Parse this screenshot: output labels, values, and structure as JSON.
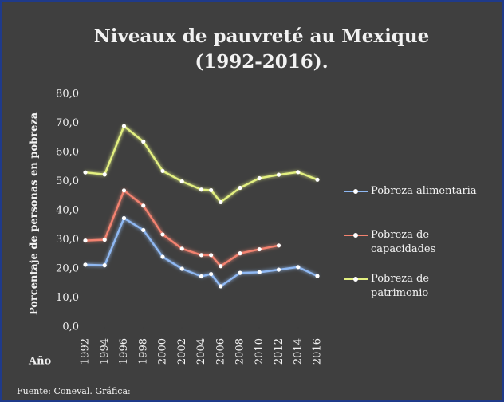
{
  "chart_data": {
    "type": "line",
    "title": [
      "Niveaux de pauvreté au Mexique",
      "(1992-2016)."
    ],
    "y_label": "Porcentaje de personas en pobreza",
    "x_label": "Año",
    "source": "Fuente: Coneval. Gráfica:",
    "x": [
      1992,
      1994,
      1996,
      1998,
      2000,
      2002,
      2004,
      2005,
      2006,
      2008,
      2010,
      2012,
      2014,
      2016
    ],
    "series": [
      {
        "name": "Pobreza alimentaria",
        "color": "#8fb8f2",
        "values": [
          21.4,
          21.2,
          37.4,
          33.3,
          24.1,
          20.0,
          17.4,
          18.2,
          14.0,
          18.6,
          18.8,
          19.7,
          20.6,
          17.5
        ]
      },
      {
        "name": "Pobreza de capacidades",
        "color": "#f2826f",
        "values": [
          29.7,
          30.0,
          46.9,
          41.7,
          31.8,
          26.9,
          24.7,
          24.7,
          20.9,
          25.3,
          26.7,
          28.0,
          null,
          null
        ]
      },
      {
        "name": "Pobreza de patrimonio",
        "color": "#e2ef80",
        "values": [
          53.1,
          52.4,
          69.0,
          63.7,
          53.6,
          50.0,
          47.2,
          47.0,
          42.9,
          47.8,
          51.1,
          52.3,
          53.2,
          50.6
        ]
      }
    ],
    "xlim": [
      1992,
      2016
    ],
    "xticks": [
      1992,
      1994,
      1996,
      1998,
      2000,
      2002,
      2004,
      2006,
      2008,
      2010,
      2012,
      2014,
      2016
    ],
    "ylim": [
      0,
      80
    ],
    "yticks": [
      {
        "value": 0,
        "label": "0,0"
      },
      {
        "value": 10,
        "label": "10,0"
      },
      {
        "value": 20,
        "label": "20,0"
      },
      {
        "value": 30,
        "label": "30,0"
      },
      {
        "value": 40,
        "label": "40,0"
      },
      {
        "value": 50,
        "label": "50,0"
      },
      {
        "value": 60,
        "label": "60,0"
      },
      {
        "value": 70,
        "label": "70,0"
      },
      {
        "value": 80,
        "label": "80,0"
      }
    ],
    "legend": "right"
  }
}
